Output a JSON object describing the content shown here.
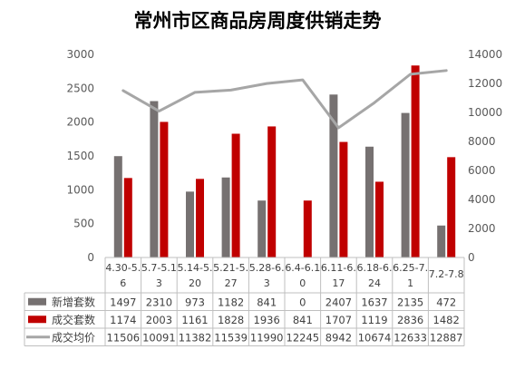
{
  "chart_data": {
    "type": "bar",
    "title": "常州市区商品房周度供销走势",
    "categories": [
      "4.30-5.6",
      "5.7-5.13",
      "5.14-5.20",
      "5.21-5.27",
      "5.28-6.3",
      "6.4-6.10",
      "6.11-6.17",
      "6.18-6.24",
      "6.25-7.1",
      "7.2-7.8"
    ],
    "category_lines": [
      [
        "4.30-5.",
        "6"
      ],
      [
        "5.7-5.1",
        "3"
      ],
      [
        "5.14-5.",
        "20"
      ],
      [
        "5.21-5.",
        "27"
      ],
      [
        "5.28-6.",
        "3"
      ],
      [
        "6.4-6.1",
        "0"
      ],
      [
        "6.11-6.",
        "17"
      ],
      [
        "6.18-6.",
        "24"
      ],
      [
        "6.25-7.",
        "1"
      ],
      [
        "7.2-7.8",
        ""
      ]
    ],
    "series": [
      {
        "name": "新增套数",
        "type": "bar",
        "axis": "left",
        "color": "#767171",
        "values": [
          1497,
          2310,
          973,
          1182,
          841,
          0,
          2407,
          1637,
          2135,
          472
        ]
      },
      {
        "name": "成交套数",
        "type": "bar",
        "axis": "left",
        "color": "#C00000",
        "values": [
          1174,
          2003,
          1161,
          1828,
          1936,
          841,
          1707,
          1119,
          2836,
          1482
        ]
      },
      {
        "name": "成交均价",
        "type": "line",
        "axis": "right",
        "color": "#A6A6A6",
        "values": [
          11506,
          10091,
          11382,
          11539,
          11990,
          12245,
          8942,
          10674,
          12633,
          12887
        ]
      }
    ],
    "y_left": {
      "min": 0,
      "max": 3000,
      "ticks": [
        0,
        500,
        1000,
        1500,
        2000,
        2500,
        3000
      ]
    },
    "y_right": {
      "min": 0,
      "max": 14000,
      "ticks": [
        0,
        2000,
        4000,
        6000,
        8000,
        10000,
        12000,
        14000
      ]
    },
    "grid": false,
    "legend": "data-table-below"
  }
}
